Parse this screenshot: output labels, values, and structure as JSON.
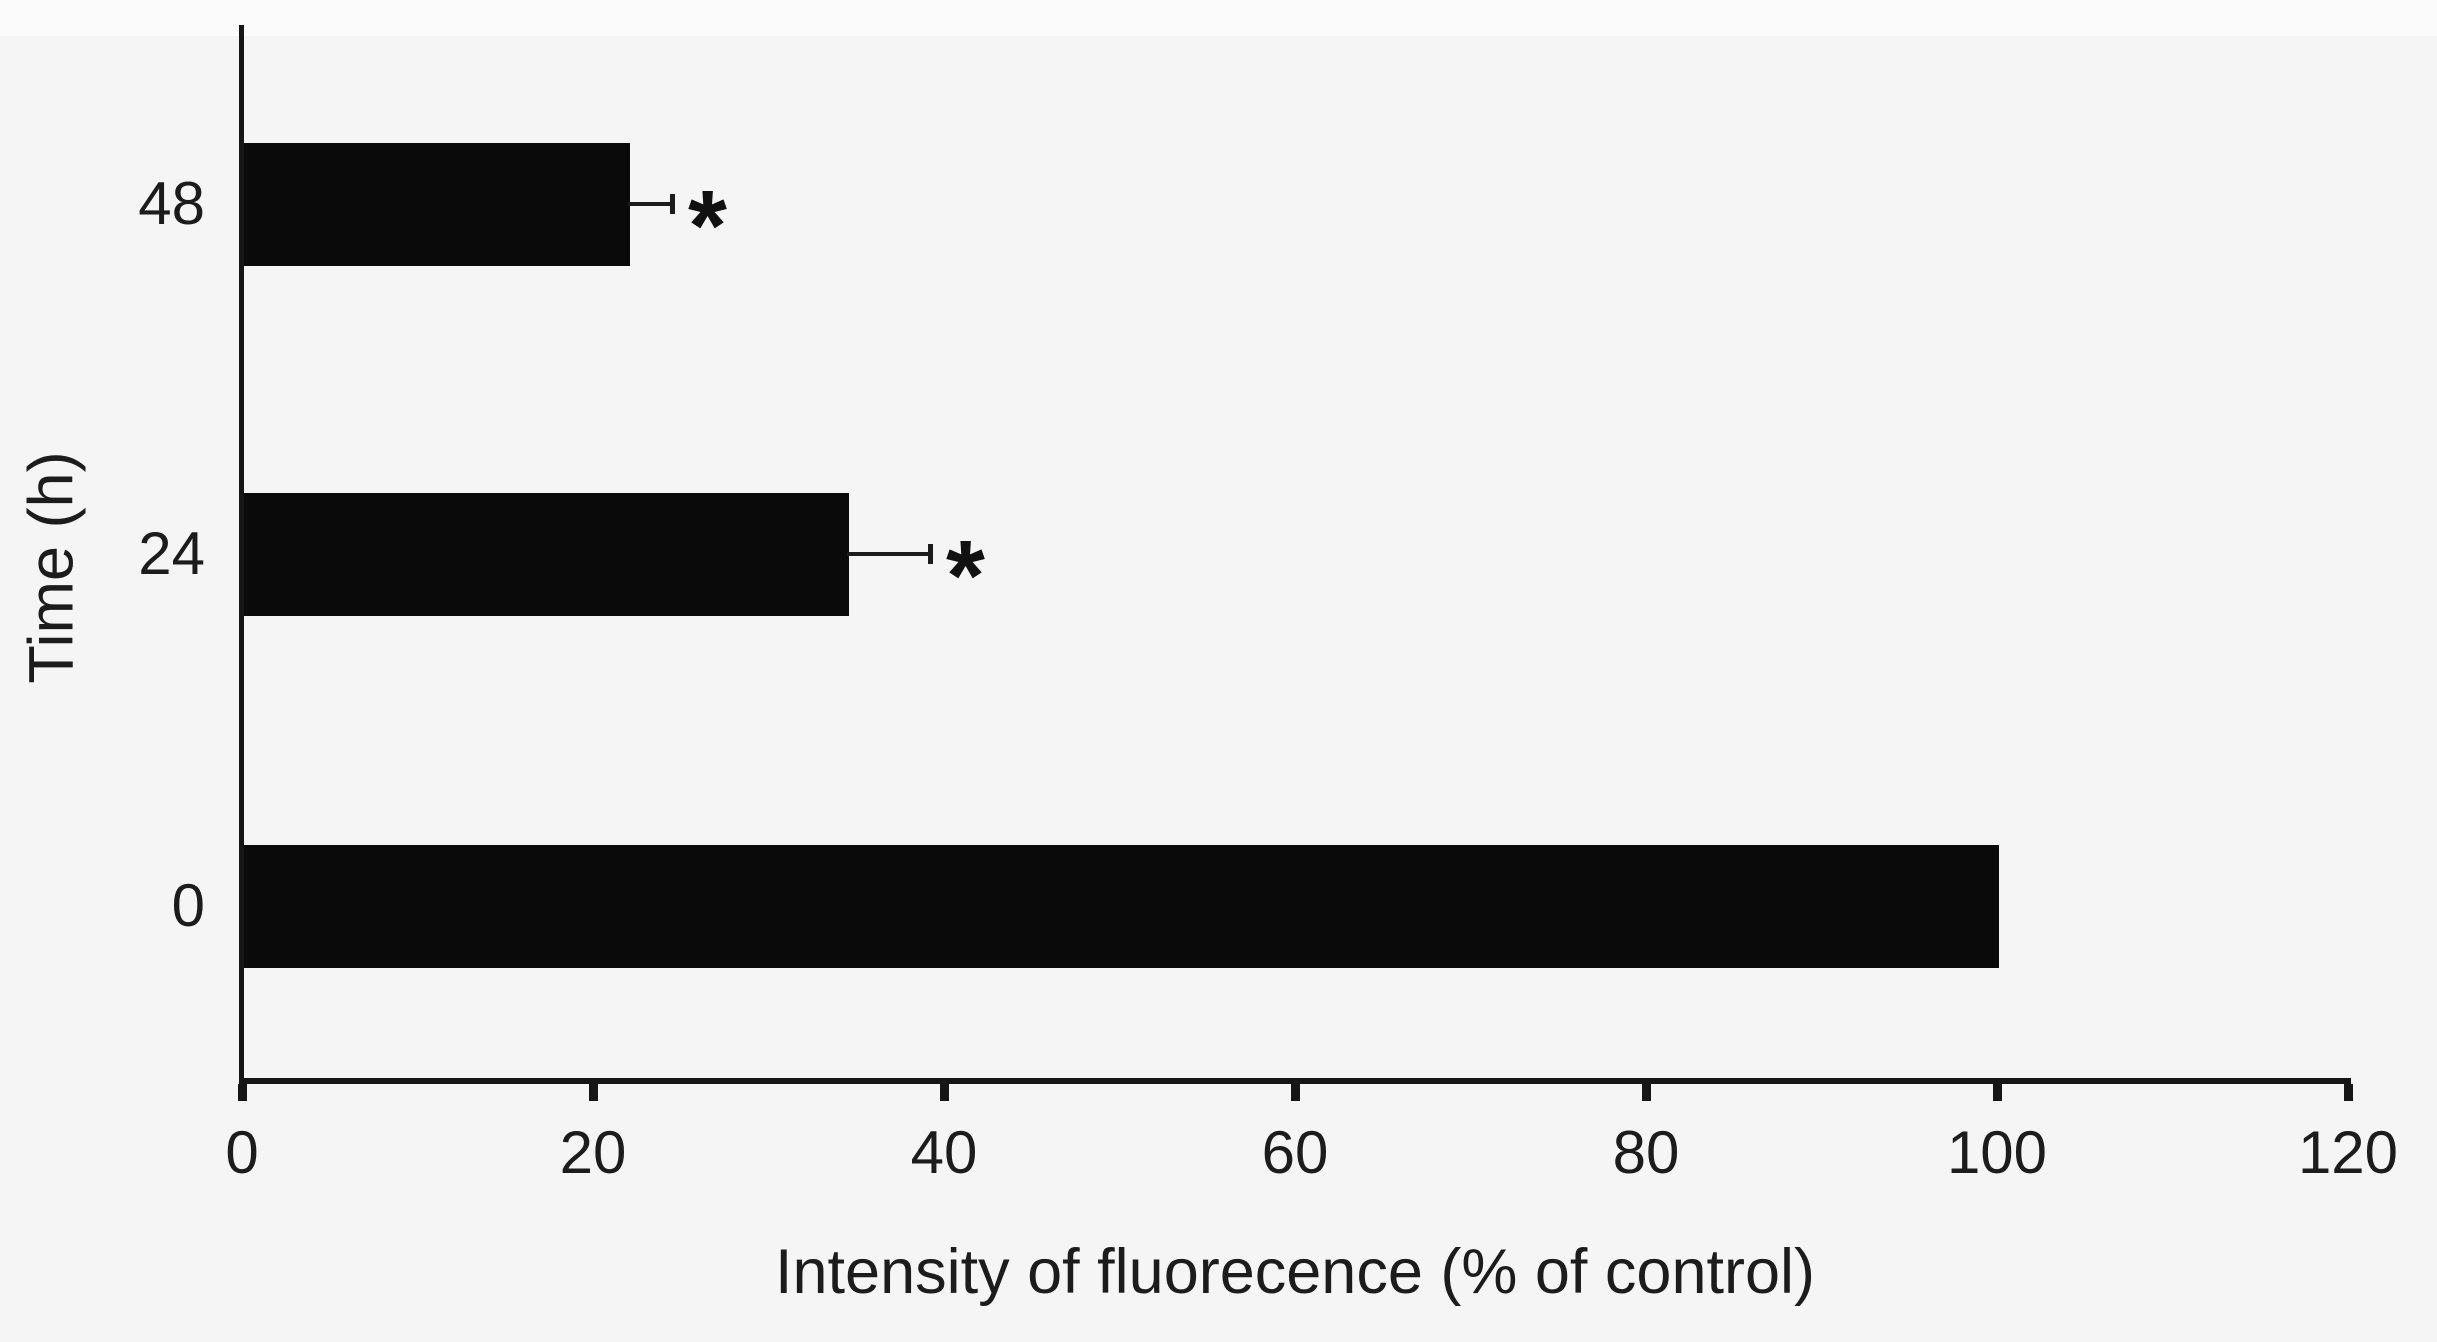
{
  "chart_data": {
    "type": "bar",
    "orientation": "horizontal",
    "title": "",
    "categories": [
      "48",
      "24",
      "0"
    ],
    "values": [
      22,
      34.5,
      100
    ],
    "errors_upper": [
      2.5,
      4.7,
      0
    ],
    "significance": [
      "*",
      "*",
      ""
    ],
    "xlabel": "Intensity of fluorecence (% of control)",
    "ylabel": "Time (h)",
    "xlim": [
      0,
      120
    ],
    "xticks": [
      0,
      20,
      40,
      60,
      80,
      100,
      120
    ],
    "grid": false,
    "legend": "none",
    "colors": {
      "bar": "#0a0a0a",
      "axis": "#161616",
      "text": "#1c1c1c",
      "background": "#f4f5f4"
    }
  }
}
